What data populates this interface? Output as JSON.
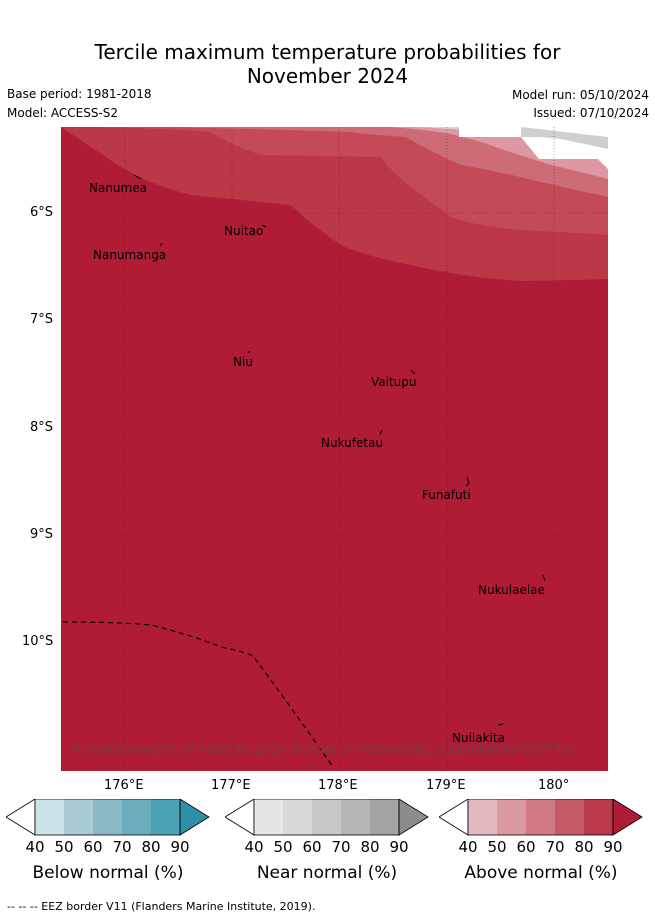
{
  "header": {
    "title_line1": "Tercile maximum temperature probabilities for",
    "title_line2": "November 2024",
    "base_period": "Base period: 1981-2018",
    "model": "Model: ACCESS-S2",
    "model_run": "Model run: 05/10/2024",
    "issued": "Issued: 07/10/2024"
  },
  "map": {
    "lat_labels": [
      "6°S",
      "7°S",
      "8°S",
      "9°S",
      "10°S"
    ],
    "lon_labels": [
      "176°E",
      "177°E",
      "178°E",
      "179°E",
      "180°"
    ],
    "places": [
      {
        "name": "Nanumea"
      },
      {
        "name": "Nuitao"
      },
      {
        "name": "Nanumanga"
      },
      {
        "name": "Niu"
      },
      {
        "name": "Vaitupu"
      },
      {
        "name": "Nukufetau"
      },
      {
        "name": "Funafuti"
      },
      {
        "name": "Nukulaelae"
      },
      {
        "name": "Nuilakita"
      }
    ],
    "copyright": "© Commonwealth of Australia 2024, Bureau of Meteorology, supported by COSPPac",
    "colors": {
      "above_90": "#b01c36",
      "above_80": "#bc3647",
      "above_70": "#c75160",
      "above_60": "#d27883",
      "above_50": "#db9aa3",
      "near_40": "#d6d6d6",
      "near_50": "#cccccc"
    }
  },
  "legends": [
    {
      "title": "Below normal (%)",
      "ticks": [
        "40",
        "50",
        "60",
        "70",
        "80",
        "90"
      ],
      "colors": [
        "#cde3ea",
        "#aacbd3",
        "#8bb9c7",
        "#6bacbf",
        "#4aa1b4",
        "#2e8fa8"
      ]
    },
    {
      "title": "Near normal (%)",
      "ticks": [
        "40",
        "50",
        "60",
        "70",
        "80",
        "90"
      ],
      "colors": [
        "#e6e6e6",
        "#d8d8d8",
        "#c8c8c8",
        "#b6b6b6",
        "#a3a3a3",
        "#8c8c8c"
      ]
    },
    {
      "title": "Above normal (%)",
      "ticks": [
        "40",
        "50",
        "60",
        "70",
        "80",
        "90"
      ],
      "colors": [
        "#e3b8bf",
        "#d99aa2",
        "#d07a84",
        "#c65b67",
        "#bb3a4a",
        "#b01c36"
      ]
    }
  ],
  "footer": "--  --  -- EEZ border V11 (Flanders Marine Institute, 2019)."
}
